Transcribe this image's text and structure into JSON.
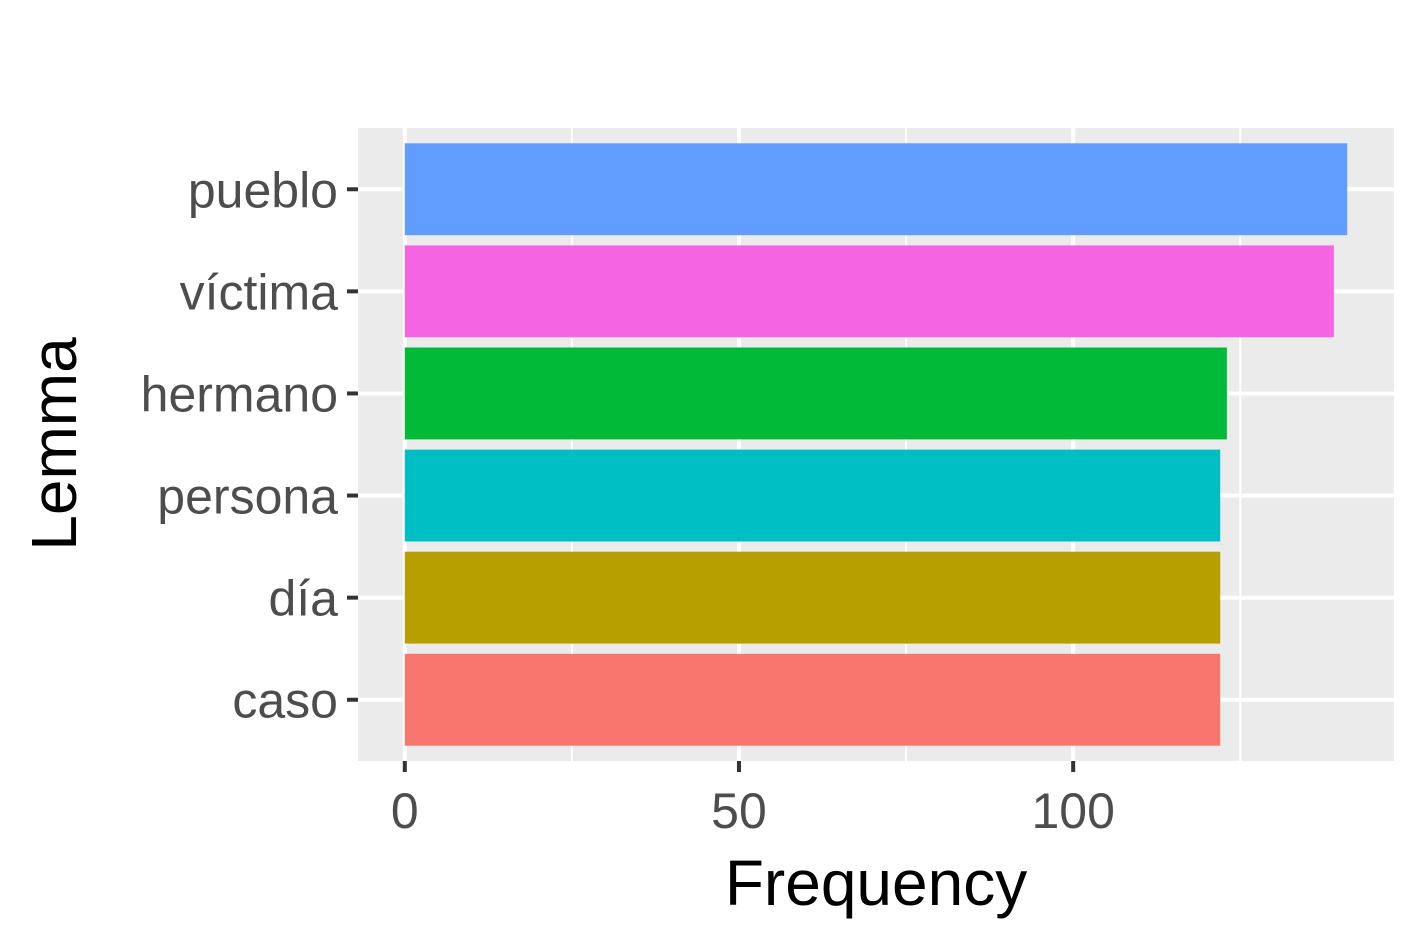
{
  "chart_data": {
    "type": "bar",
    "orientation": "horizontal",
    "xlabel": "Frequency",
    "ylabel": "Lemma",
    "categories": [
      "caso",
      "día",
      "persona",
      "hermano",
      "víctima",
      "pueblo"
    ],
    "values": [
      122,
      122,
      122,
      123,
      139,
      141
    ],
    "colors": [
      "#F8766D",
      "#B79F00",
      "#00BFC4",
      "#00BA38",
      "#F564E3",
      "#619CFF"
    ],
    "xlim": [
      -7,
      148
    ],
    "xticks": [
      0,
      50,
      100
    ],
    "xtick_labels": [
      "0",
      "50",
      "100"
    ],
    "grid": true,
    "legend": "none"
  }
}
